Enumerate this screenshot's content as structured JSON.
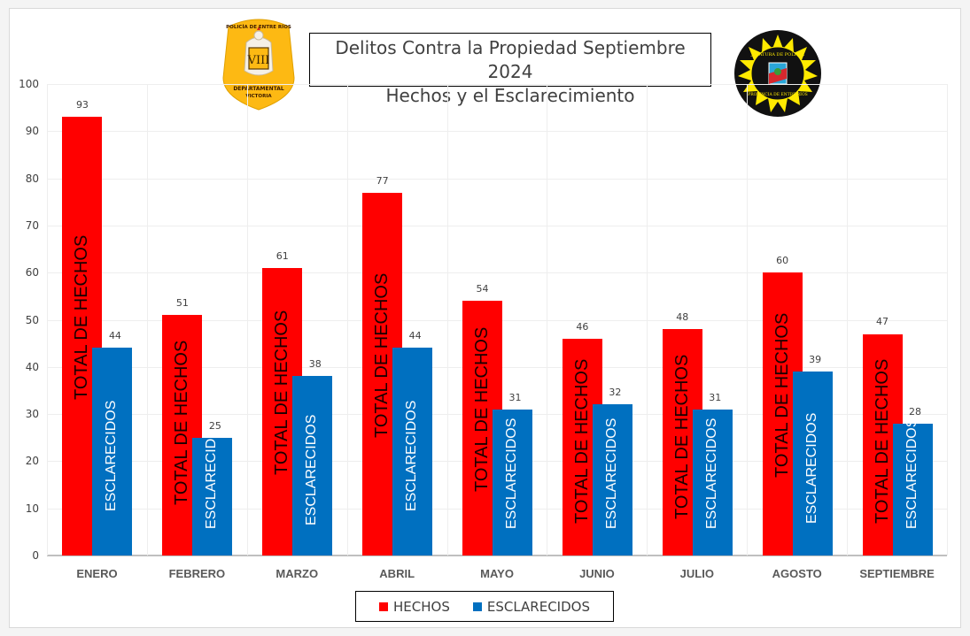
{
  "chart_data": {
    "type": "bar",
    "title": "Delitos Contra la Propiedad Septiembre 2024",
    "subtitle": "Hechos y el Esclarecimiento",
    "categories": [
      "ENERO",
      "FEBRERO",
      "MARZO",
      "ABRIL",
      "MAYO",
      "JUNIO",
      "JULIO",
      "AGOSTO",
      "SEPTIEMBRE"
    ],
    "series": [
      {
        "name": "HECHOS",
        "bar_text": "TOTAL DE HECHOS",
        "color": "#ff0000",
        "values": [
          93,
          51,
          61,
          77,
          54,
          46,
          48,
          60,
          47
        ]
      },
      {
        "name": "ESCLARECIDOS",
        "bar_text": "ESCLARECIDOS",
        "color": "#0070c0",
        "values": [
          44,
          25,
          38,
          44,
          31,
          32,
          31,
          39,
          28
        ]
      }
    ],
    "xlabel": "",
    "ylabel": "",
    "ylim": [
      0,
      100
    ],
    "yticks": [
      0,
      10,
      20,
      30,
      40,
      50,
      60,
      70,
      80,
      90,
      100
    ],
    "grid": true,
    "legend_position": "bottom"
  },
  "title": {
    "line1": "Delitos Contra la Propiedad Septiembre 2024",
    "line2": "Hechos y el Esclarecimiento"
  },
  "legend": {
    "items": [
      {
        "label": "HECHOS",
        "color": "#ff0000"
      },
      {
        "label": "ESCLARECIDOS",
        "color": "#0070c0"
      }
    ]
  },
  "logos": {
    "left": {
      "top_text": "POLICÍA DE ENTRE RÍOS",
      "numeral": "VIII",
      "bottom_line1": "DEPARTAMENTAL",
      "bottom_line2": "VICTORIA"
    },
    "right": {
      "top_text": "JEFATURA DE POLICÍA",
      "bottom_text": "PROVINCIA DE ENTRE RÍOS"
    }
  }
}
